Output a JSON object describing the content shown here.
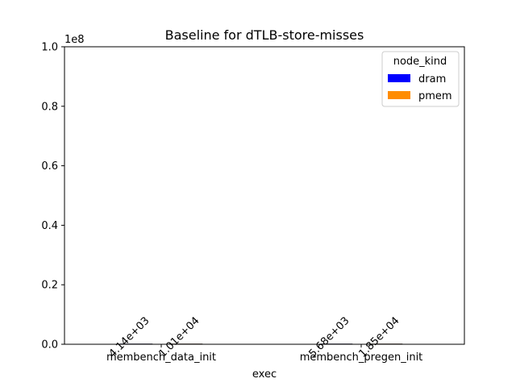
{
  "chart_data": {
    "type": "bar",
    "title": "Baseline for dTLB-store-misses",
    "xlabel": "exec",
    "ylabel": "",
    "scale_label": "1e8",
    "categories": [
      "membench_data_init",
      "membench_pregen_init"
    ],
    "series": [
      {
        "name": "dram",
        "color": "#0000ff",
        "values": [
          4140,
          5680
        ],
        "labels": [
          "4.14e+03",
          "5.68e+03"
        ]
      },
      {
        "name": "pmem",
        "color": "#ff8c00",
        "values": [
          10100,
          18500
        ],
        "labels": [
          "1.01e+04",
          "1.85e+04"
        ]
      }
    ],
    "ylim": [
      0,
      100000000
    ],
    "yticks": [
      {
        "value": 0,
        "label": "0.0"
      },
      {
        "value": 20000000,
        "label": "0.2"
      },
      {
        "value": 40000000,
        "label": "0.4"
      },
      {
        "value": 60000000,
        "label": "0.6"
      },
      {
        "value": 80000000,
        "label": "0.8"
      },
      {
        "value": 100000000,
        "label": "1.0"
      }
    ],
    "legend": {
      "title": "node_kind",
      "placement": "top-right"
    },
    "grid": false
  }
}
